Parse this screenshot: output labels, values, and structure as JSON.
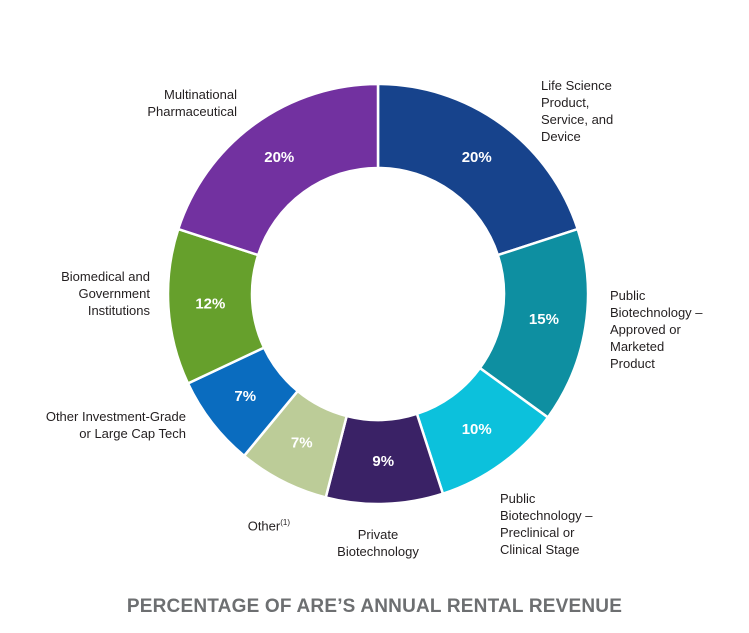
{
  "chart_data": {
    "type": "pie",
    "donut": true,
    "title": "PERCENTAGE OF ARE’S ANNUAL RENTAL REVENUE",
    "slices": [
      {
        "label": "Life Science Product, Service, and Device",
        "value": 20,
        "value_label": "20%",
        "color": "#17438c"
      },
      {
        "label": "Public Biotechnology – Approved or Marketed Product",
        "value": 15,
        "value_label": "15%",
        "color": "#0e8fa1"
      },
      {
        "label": "Public Biotechnology – Preclinical or Clinical Stage",
        "value": 10,
        "value_label": "10%",
        "color": "#0cc1dc"
      },
      {
        "label": "Private Biotechnology",
        "value": 9,
        "value_label": "9%",
        "color": "#3a2266"
      },
      {
        "label": "Other",
        "label_superscript": "(1)",
        "value": 7,
        "value_label": "7%",
        "color": "#bccc98"
      },
      {
        "label": "Other Investment-Grade or Large Cap Tech",
        "value": 7,
        "value_label": "7%",
        "color": "#0a6cbf"
      },
      {
        "label": "Biomedical and Government Institutions",
        "value": 12,
        "value_label": "12%",
        "color": "#66a02c"
      },
      {
        "label": "Multinational Pharmaceutical",
        "value": 20,
        "value_label": "20%",
        "color": "#7231a0"
      }
    ]
  },
  "labels": {
    "life_science": "Life Science\nProduct,\nService, and\nDevice",
    "pub_bio_approved": "Public\nBiotechnology –\nApproved or\nMarketed\nProduct",
    "pub_bio_preclinical": "Public\nBiotechnology –\nPreclinical or\nClinical Stage",
    "private_bio": "Private\nBiotechnology",
    "other": "Other",
    "other_sup": "(1)",
    "other_investment": "Other Investment-Grade\nor Large Cap Tech",
    "biomedical": "Biomedical and\nGovernment\nInstitutions",
    "multinational": "Multinational\nPharmaceutical"
  }
}
